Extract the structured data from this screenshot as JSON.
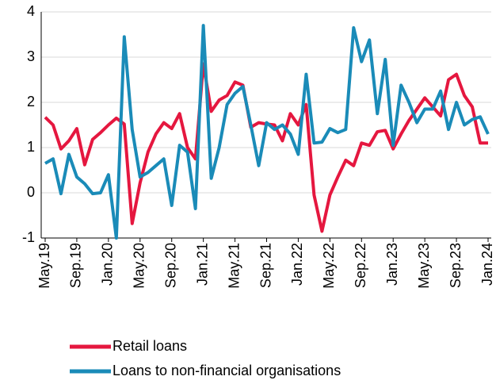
{
  "chart_data": {
    "type": "line",
    "categories": [
      "May.19",
      null,
      null,
      null,
      "Sep.19",
      null,
      null,
      null,
      "Jan.20",
      null,
      null,
      null,
      "May.20",
      null,
      null,
      null,
      "Sep.20",
      null,
      null,
      null,
      "Jan.21",
      null,
      null,
      null,
      "May.21",
      null,
      null,
      null,
      "Sep.21",
      null,
      null,
      null,
      "Jan.22",
      null,
      null,
      null,
      "May.22",
      null,
      null,
      null,
      "Sep.22",
      null,
      null,
      null,
      "Jan.23",
      null,
      null,
      null,
      "May.23",
      null,
      null,
      null,
      "Sep.23",
      null,
      null,
      null,
      "Jan.24"
    ],
    "series": [
      {
        "name": "Retail loans",
        "color": "#e5173f",
        "values": [
          1.67,
          1.5,
          0.97,
          1.15,
          1.42,
          0.62,
          1.18,
          1.33,
          1.5,
          1.65,
          1.52,
          -0.68,
          0.22,
          0.9,
          1.3,
          1.55,
          1.42,
          1.75,
          1.0,
          0.75,
          2.85,
          1.8,
          2.05,
          2.15,
          2.45,
          2.38,
          1.45,
          1.55,
          1.52,
          1.5,
          1.15,
          1.75,
          1.5,
          1.95,
          -0.05,
          -0.85,
          -0.05,
          0.35,
          0.72,
          0.6,
          1.1,
          1.05,
          1.35,
          1.38,
          0.97,
          1.3,
          1.6,
          1.85,
          2.1,
          1.9,
          1.7,
          2.5,
          2.62,
          2.15,
          1.9,
          1.1,
          1.1
        ]
      },
      {
        "name": "Loans to non-financial organisations",
        "color": "#1a8bb8",
        "values": [
          0.65,
          0.75,
          -0.02,
          0.85,
          0.35,
          0.2,
          -0.02,
          0.0,
          0.4,
          -1.0,
          3.45,
          1.4,
          0.35,
          0.45,
          0.6,
          0.75,
          -0.28,
          1.05,
          0.9,
          -0.35,
          3.7,
          0.32,
          1.0,
          1.95,
          2.2,
          2.35,
          1.5,
          0.6,
          1.55,
          1.4,
          1.5,
          1.3,
          0.85,
          2.62,
          1.1,
          1.12,
          1.42,
          1.33,
          1.4,
          3.65,
          2.9,
          3.38,
          1.75,
          2.95,
          1.05,
          2.38,
          2.0,
          1.55,
          1.85,
          1.85,
          2.25,
          1.4,
          2.0,
          1.5,
          1.62,
          1.68,
          1.3
        ]
      }
    ],
    "ylim": [
      -1,
      4
    ],
    "yticks": [
      {
        "value": -1,
        "label": "-1"
      },
      0,
      1,
      2,
      3,
      4
    ],
    "grid": true
  }
}
